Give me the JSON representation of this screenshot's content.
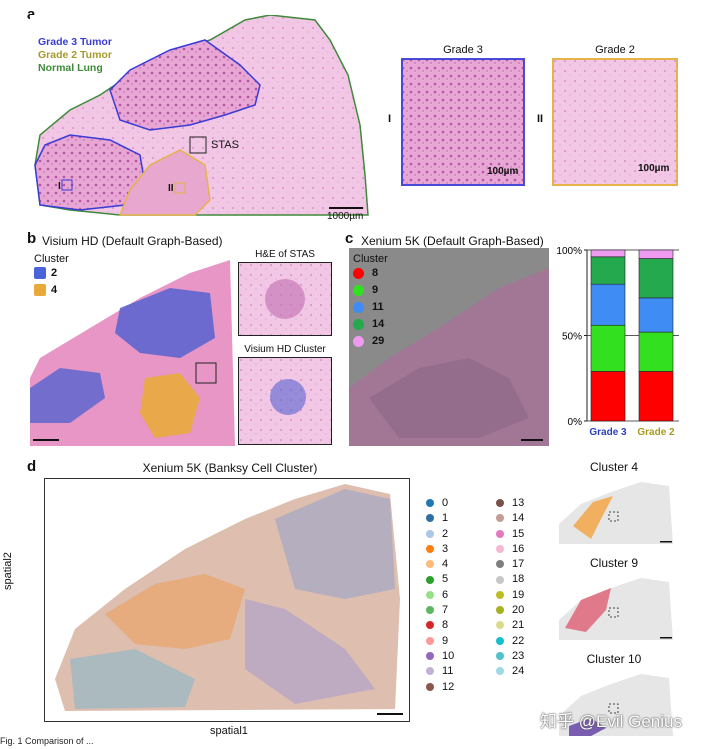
{
  "panel_a": {
    "letter": "a",
    "legend": [
      {
        "label": "Grade 3 Tumor",
        "color": "#3b3bd6"
      },
      {
        "label": "Grade 2 Tumor",
        "color": "#a89a2a"
      },
      {
        "label": "Normal Lung",
        "color": "#3f8a3a"
      }
    ],
    "stas_label": "STAS",
    "roi_1": "I",
    "roi_2": "II",
    "scale_label": "1000µm",
    "inset_1": {
      "title": "Grade 3",
      "roman": "I",
      "scale": "100µm",
      "border": "#4a4ad8"
    },
    "inset_2": {
      "title": "Grade 2",
      "roman": "II",
      "scale": "100µm",
      "border": "#e6b24a"
    }
  },
  "panel_b": {
    "letter": "b",
    "title": "Visium HD (Default Graph-Based)",
    "legend_title": "Cluster",
    "legend": [
      {
        "label": "2",
        "color": "#4a63d8"
      },
      {
        "label": "4",
        "color": "#e9aa3c"
      }
    ],
    "inset_top": "H&E of STAS",
    "inset_bottom": "Visium HD Cluster"
  },
  "panel_c": {
    "letter": "c",
    "title": "Xenium 5K (Default Graph-Based)",
    "legend_title": "Cluster",
    "legend": [
      {
        "label": "8",
        "color": "#ff0000"
      },
      {
        "label": "9",
        "color": "#33e01f"
      },
      {
        "label": "11",
        "color": "#3f8cf4"
      },
      {
        "label": "14",
        "color": "#24a94f"
      },
      {
        "label": "29",
        "color": "#ee9af0"
      }
    ]
  },
  "chart_data": {
    "type": "bar",
    "stacked": true,
    "categories": [
      "Grade 3",
      "Grade 2"
    ],
    "category_colors": [
      "#2a3fbf",
      "#a89a1e"
    ],
    "ytick_labels": [
      "0%",
      "50%",
      "100%"
    ],
    "ylim": [
      0,
      100
    ],
    "series": [
      {
        "name": "8",
        "color": "#ff0000",
        "values": [
          29,
          29
        ]
      },
      {
        "name": "9",
        "color": "#33e01f",
        "values": [
          27,
          23
        ]
      },
      {
        "name": "11",
        "color": "#3f8cf4",
        "values": [
          24,
          20
        ]
      },
      {
        "name": "14",
        "color": "#24a94f",
        "values": [
          16,
          23
        ]
      },
      {
        "name": "29",
        "color": "#ee9af0",
        "values": [
          4,
          5
        ]
      }
    ]
  },
  "panel_d": {
    "letter": "d",
    "title": "Xenium 5K (Banksy Cell Cluster)",
    "ylabel": "spatial2",
    "xlabel": "spatial1",
    "clusters": [
      {
        "label": "0",
        "color": "#1f77b4"
      },
      {
        "label": "1",
        "color": "#2f6fa3"
      },
      {
        "label": "2",
        "color": "#aec7e8"
      },
      {
        "label": "3",
        "color": "#ff7f0e"
      },
      {
        "label": "4",
        "color": "#ffbb78"
      },
      {
        "label": "5",
        "color": "#2ca02c"
      },
      {
        "label": "6",
        "color": "#98df8a"
      },
      {
        "label": "7",
        "color": "#5cb85c"
      },
      {
        "label": "8",
        "color": "#d62728"
      },
      {
        "label": "9",
        "color": "#ff9896"
      },
      {
        "label": "10",
        "color": "#9467bd"
      },
      {
        "label": "11",
        "color": "#c5b0d5"
      },
      {
        "label": "12",
        "color": "#8c564b"
      },
      {
        "label": "13",
        "color": "#7a5148"
      },
      {
        "label": "14",
        "color": "#c49c94"
      },
      {
        "label": "15",
        "color": "#e377c2"
      },
      {
        "label": "16",
        "color": "#f7b6d2"
      },
      {
        "label": "17",
        "color": "#7f7f7f"
      },
      {
        "label": "18",
        "color": "#c7c7c7"
      },
      {
        "label": "19",
        "color": "#bcbd22"
      },
      {
        "label": "20",
        "color": "#a8b020"
      },
      {
        "label": "21",
        "color": "#dbdb8d"
      },
      {
        "label": "22",
        "color": "#17becf"
      },
      {
        "label": "23",
        "color": "#4fc1c9"
      },
      {
        "label": "24",
        "color": "#9edae5"
      }
    ],
    "side_panels": [
      {
        "title": "Cluster 4",
        "color": "#f0b060"
      },
      {
        "title": "Cluster 9",
        "color": "#e07a8a"
      },
      {
        "title": "Cluster 10",
        "color": "#7a5cb0"
      }
    ]
  },
  "watermark": "知乎 @Evil Genius",
  "caption": "Fig. 1 Comparison of ..."
}
